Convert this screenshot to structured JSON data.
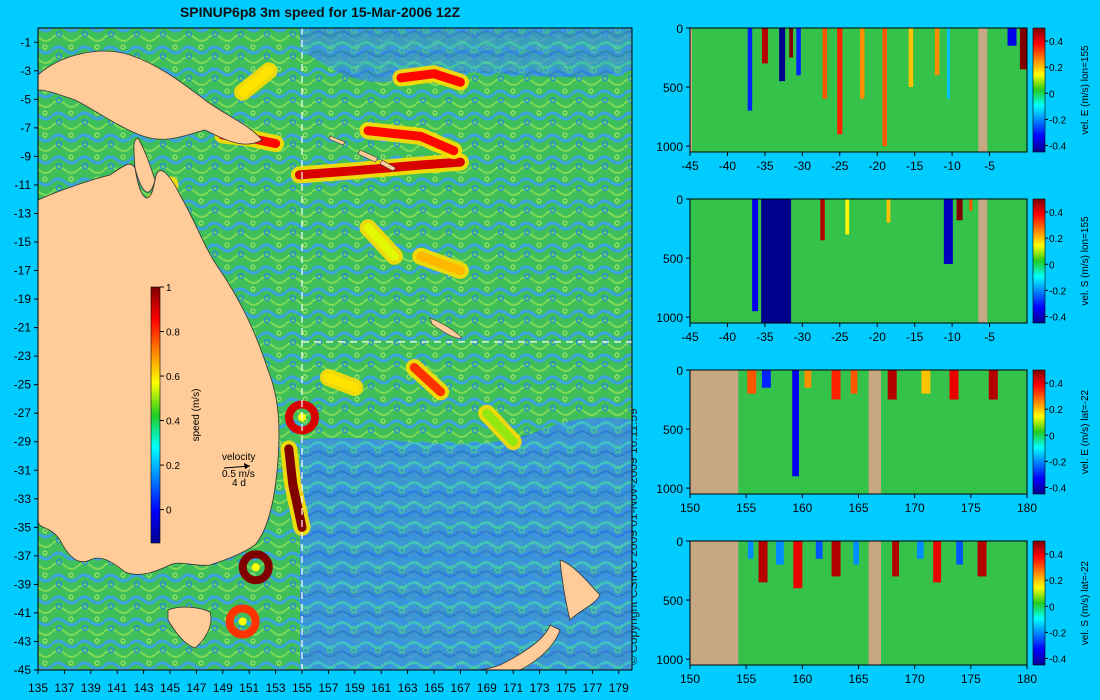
{
  "figure": {
    "title": "SPINUP6p8 3m speed for 15-Mar-2006 12Z",
    "copyright": "© Copyright CSIRO 2009   01-Nov-2009 16:11:59",
    "background_color": "#00ccff",
    "land_color": "#ffcc99",
    "section_land_color": "#c8a882"
  },
  "chart_data": [
    {
      "type": "heatmap",
      "name": "surface-speed-map",
      "x_ticks": [
        135,
        137,
        139,
        141,
        143,
        145,
        147,
        149,
        151,
        153,
        155,
        157,
        159,
        161,
        163,
        165,
        167,
        169,
        171,
        173,
        175,
        177,
        179
      ],
      "x_tick_labels": [
        "135",
        "137",
        "139",
        "141",
        "143",
        "145",
        "147",
        "149",
        "151",
        "153",
        "155",
        "157",
        "159",
        "161",
        "163",
        "165",
        "167",
        "169",
        "171",
        "173",
        "175",
        "177",
        "179"
      ],
      "xlim": [
        135,
        180
      ],
      "y_ticks": [
        -1,
        -3,
        -5,
        -7,
        -9,
        -11,
        -13,
        -15,
        -17,
        -19,
        -21,
        -23,
        -25,
        -27,
        -29,
        -31,
        -33,
        -35,
        -37,
        -39,
        -41,
        -43,
        -45
      ],
      "y_tick_labels": [
        "-1",
        "-3",
        "-5",
        "-7",
        "-9",
        "-11",
        "-13",
        "-15",
        "-17",
        "-19",
        "-21",
        "-23",
        "-25",
        "-27",
        "-29",
        "-31",
        "-33",
        "-35",
        "-37",
        "-39",
        "-41",
        "-43",
        "-45"
      ],
      "ylim": [
        -45,
        0
      ],
      "section_lines": {
        "lon": 155,
        "lat": -22
      },
      "colorbar": {
        "label": "speed (m/s)",
        "ticks": [
          0,
          0.2,
          0.4,
          0.6,
          0.8,
          1
        ],
        "tick_labels": [
          "0",
          "0.2",
          "0.4",
          "0.6",
          "0.8",
          "1"
        ],
        "range": [
          -0.15,
          1
        ]
      },
      "velocity_key": {
        "label": "velocity",
        "speed": "0.5 m/s",
        "duration": "4 d"
      },
      "features": [
        {
          "kind": "eddy-ring",
          "lon": 151.5,
          "lat": -37.8,
          "speed": 1.0
        },
        {
          "kind": "eddy-ring",
          "lon": 155.0,
          "lat": -27.3,
          "speed": 0.9
        },
        {
          "kind": "eddy-ring",
          "lon": 150.5,
          "lat": -41.6,
          "speed": 0.8
        },
        {
          "kind": "jet",
          "points": [
            [
              154.0,
              -29.5
            ],
            [
              154.3,
              -32
            ],
            [
              155.0,
              -35
            ]
          ],
          "speed": 1.0
        },
        {
          "kind": "jet",
          "points": [
            [
              154.8,
              -10.3
            ],
            [
              159,
              -10
            ],
            [
              164,
              -9.6
            ],
            [
              167,
              -9.4
            ]
          ],
          "speed": 0.9
        },
        {
          "kind": "jet",
          "points": [
            [
              160,
              -7.2
            ],
            [
              164,
              -7.6
            ],
            [
              166.5,
              -8.6
            ]
          ],
          "speed": 0.85
        },
        {
          "kind": "jet",
          "points": [
            [
              149,
              -7.5
            ],
            [
              151,
              -7.7
            ],
            [
              153,
              -8.1
            ]
          ],
          "speed": 0.85
        },
        {
          "kind": "jet",
          "points": [
            [
              162.5,
              -3.5
            ],
            [
              165,
              -3.2
            ],
            [
              167,
              -3.8
            ]
          ],
          "speed": 0.85
        },
        {
          "kind": "jet",
          "points": [
            [
              163.5,
              -23.8
            ],
            [
              165.5,
              -25.5
            ]
          ],
          "speed": 0.8
        },
        {
          "kind": "jet",
          "points": [
            [
              157,
              -24.5
            ],
            [
              159,
              -25.2
            ]
          ],
          "speed": 0.6
        },
        {
          "kind": "jet",
          "points": [
            [
              164,
              -16
            ],
            [
              167,
              -17
            ]
          ],
          "speed": 0.65
        },
        {
          "kind": "jet",
          "points": [
            [
              160,
              -14
            ],
            [
              162,
              -16
            ]
          ],
          "speed": 0.55
        },
        {
          "kind": "jet",
          "points": [
            [
              143,
              -13
            ],
            [
              145,
              -11
            ]
          ],
          "speed": 0.55
        },
        {
          "kind": "jet",
          "points": [
            [
              150.5,
              -4.5
            ],
            [
              152.5,
              -3
            ]
          ],
          "speed": 0.6
        },
        {
          "kind": "jet",
          "points": [
            [
              169,
              -27
            ],
            [
              171,
              -29
            ]
          ],
          "speed": 0.5
        }
      ]
    },
    {
      "type": "heatmap",
      "name": "section-lon155-east",
      "ylabel": "vel. E (m/s) lon=155",
      "x_ticks": [
        -45,
        -40,
        -35,
        -30,
        -25,
        -20,
        -15,
        -10,
        -5
      ],
      "x_tick_labels": [
        "-45",
        "-40",
        "-35",
        "-30",
        "-25",
        "-20",
        "-15",
        "-10",
        "-5"
      ],
      "xlim": [
        -45,
        0
      ],
      "y_ticks": [
        0,
        500,
        1000
      ],
      "y_tick_labels": [
        "0",
        "500",
        "1000"
      ],
      "ylim": [
        1050,
        0
      ],
      "land": [
        [
          -45,
          -45
        ],
        [
          -6.5,
          -5.3
        ]
      ],
      "colorbar": {
        "ticks": [
          -0.4,
          -0.2,
          0,
          0.2,
          0.4
        ],
        "tick_labels": [
          "-0.4",
          "-0.2",
          "0",
          "0.2",
          "0.4"
        ],
        "range": [
          -0.45,
          0.5
        ]
      },
      "cells": [
        {
          "x": -37.0,
          "width": 0.6,
          "value": -0.3,
          "depth": 700
        },
        {
          "x": -35.0,
          "width": 0.8,
          "value": 0.45,
          "depth": 300
        },
        {
          "x": -32.7,
          "width": 0.8,
          "value": -0.45,
          "depth": 450
        },
        {
          "x": -31.5,
          "width": 0.5,
          "value": 0.5,
          "depth": 250
        },
        {
          "x": -30.5,
          "width": 0.6,
          "value": -0.3,
          "depth": 400
        },
        {
          "x": -27.0,
          "width": 0.6,
          "value": 0.3,
          "depth": 600
        },
        {
          "x": -25.0,
          "width": 0.7,
          "value": 0.35,
          "depth": 900
        },
        {
          "x": -22.0,
          "width": 0.6,
          "value": 0.25,
          "depth": 600
        },
        {
          "x": -19.0,
          "width": 0.6,
          "value": 0.3,
          "depth": 1000
        },
        {
          "x": -15.5,
          "width": 0.6,
          "value": 0.2,
          "depth": 500
        },
        {
          "x": -12.0,
          "width": 0.6,
          "value": 0.25,
          "depth": 400
        },
        {
          "x": -10.5,
          "width": 0.4,
          "value": -0.15,
          "depth": 600
        },
        {
          "x": -2.0,
          "width": 1.2,
          "value": -0.35,
          "depth": 150
        },
        {
          "x": -0.5,
          "width": 0.9,
          "value": 0.5,
          "depth": 350
        }
      ]
    },
    {
      "type": "heatmap",
      "name": "section-lon155-south",
      "ylabel": "vel. S (m/s) lon=155",
      "x_ticks": [
        -45,
        -40,
        -35,
        -30,
        -25,
        -20,
        -15,
        -10,
        -5
      ],
      "x_tick_labels": [
        "-45",
        "-40",
        "-35",
        "-30",
        "-25",
        "-20",
        "-15",
        "-10",
        "-5"
      ],
      "xlim": [
        -45,
        0
      ],
      "y_ticks": [
        0,
        500,
        1000
      ],
      "y_tick_labels": [
        "0",
        "500",
        "1000"
      ],
      "ylim": [
        1050,
        0
      ],
      "land": [
        [
          -6.5,
          -5.3
        ]
      ],
      "colorbar": {
        "ticks": [
          -0.4,
          -0.2,
          0,
          0.2,
          0.4
        ],
        "tick_labels": [
          "-0.4",
          "-0.2",
          "0",
          "0.2",
          "0.4"
        ],
        "range": [
          -0.45,
          0.5
        ]
      },
      "cells": [
        {
          "x": -36.3,
          "width": 0.8,
          "value": -0.35,
          "depth": 950
        },
        {
          "x": -33.5,
          "width": 4.0,
          "value": -0.5,
          "depth": 1050
        },
        {
          "x": -27.3,
          "width": 0.6,
          "value": 0.45,
          "depth": 350
        },
        {
          "x": -24.0,
          "width": 0.5,
          "value": 0.15,
          "depth": 300
        },
        {
          "x": -18.5,
          "width": 0.5,
          "value": 0.2,
          "depth": 200
        },
        {
          "x": -10.5,
          "width": 1.2,
          "value": -0.4,
          "depth": 550
        },
        {
          "x": -9.0,
          "width": 0.8,
          "value": 0.5,
          "depth": 180
        },
        {
          "x": -7.5,
          "width": 0.4,
          "value": 0.3,
          "depth": 100
        }
      ]
    },
    {
      "type": "heatmap",
      "name": "section-lat-22-east",
      "ylabel": "vel. E (m/s) lat=-22",
      "x_ticks": [
        150,
        155,
        160,
        165,
        170,
        175,
        180
      ],
      "x_tick_labels": [
        "150",
        "155",
        "160",
        "165",
        "170",
        "175",
        "180"
      ],
      "xlim": [
        150,
        180
      ],
      "y_ticks": [
        0,
        500,
        1000
      ],
      "y_tick_labels": [
        "0",
        "500",
        "1000"
      ],
      "ylim": [
        1050,
        0
      ],
      "land": [
        [
          150,
          154.3
        ],
        [
          165.9,
          167.0
        ]
      ],
      "colorbar": {
        "ticks": [
          -0.4,
          -0.2,
          0,
          0.2,
          0.4
        ],
        "tick_labels": [
          "-0.4",
          "-0.2",
          "0",
          "0.2",
          "0.4"
        ],
        "range": [
          -0.45,
          0.5
        ]
      },
      "cells": [
        {
          "x": 155.5,
          "width": 0.8,
          "value": 0.3,
          "depth": 200
        },
        {
          "x": 156.8,
          "width": 0.8,
          "value": -0.3,
          "depth": 150
        },
        {
          "x": 159.4,
          "width": 0.6,
          "value": -0.35,
          "depth": 900
        },
        {
          "x": 160.5,
          "width": 0.6,
          "value": 0.25,
          "depth": 150
        },
        {
          "x": 163.0,
          "width": 0.8,
          "value": 0.35,
          "depth": 250
        },
        {
          "x": 164.6,
          "width": 0.6,
          "value": 0.3,
          "depth": 200
        },
        {
          "x": 168.0,
          "width": 0.8,
          "value": 0.45,
          "depth": 250
        },
        {
          "x": 171.0,
          "width": 0.8,
          "value": 0.2,
          "depth": 200
        },
        {
          "x": 173.5,
          "width": 0.8,
          "value": 0.4,
          "depth": 250
        },
        {
          "x": 177.0,
          "width": 0.8,
          "value": 0.45,
          "depth": 250
        }
      ]
    },
    {
      "type": "heatmap",
      "name": "section-lat-22-south",
      "ylabel": "vel. S (m/s) lat=-22",
      "x_ticks": [
        150,
        155,
        160,
        165,
        170,
        175,
        180
      ],
      "x_tick_labels": [
        "150",
        "155",
        "160",
        "165",
        "170",
        "175",
        "180"
      ],
      "xlim": [
        150,
        180
      ],
      "y_ticks": [
        0,
        500,
        1000
      ],
      "y_tick_labels": [
        "0",
        "500",
        "1000"
      ],
      "ylim": [
        1050,
        0
      ],
      "land": [
        [
          150,
          154.3
        ],
        [
          165.9,
          167.0
        ]
      ],
      "colorbar": {
        "ticks": [
          -0.4,
          -0.2,
          0,
          0.2,
          0.4
        ],
        "tick_labels": [
          "-0.4",
          "-0.2",
          "0",
          "0.2",
          "0.4"
        ],
        "range": [
          -0.45,
          0.5
        ]
      },
      "cells": [
        {
          "x": 155.4,
          "width": 0.5,
          "value": -0.2,
          "depth": 150
        },
        {
          "x": 156.5,
          "width": 0.8,
          "value": 0.45,
          "depth": 350
        },
        {
          "x": 158.0,
          "width": 0.7,
          "value": -0.2,
          "depth": 200
        },
        {
          "x": 159.6,
          "width": 0.8,
          "value": 0.4,
          "depth": 400
        },
        {
          "x": 161.5,
          "width": 0.6,
          "value": -0.25,
          "depth": 150
        },
        {
          "x": 163.0,
          "width": 0.8,
          "value": 0.45,
          "depth": 300
        },
        {
          "x": 164.8,
          "width": 0.5,
          "value": -0.2,
          "depth": 200
        },
        {
          "x": 168.3,
          "width": 0.6,
          "value": 0.45,
          "depth": 300
        },
        {
          "x": 170.5,
          "width": 0.6,
          "value": -0.2,
          "depth": 150
        },
        {
          "x": 172.0,
          "width": 0.7,
          "value": 0.4,
          "depth": 350
        },
        {
          "x": 174.0,
          "width": 0.6,
          "value": -0.25,
          "depth": 200
        },
        {
          "x": 176.0,
          "width": 0.8,
          "value": 0.45,
          "depth": 300
        }
      ]
    }
  ]
}
